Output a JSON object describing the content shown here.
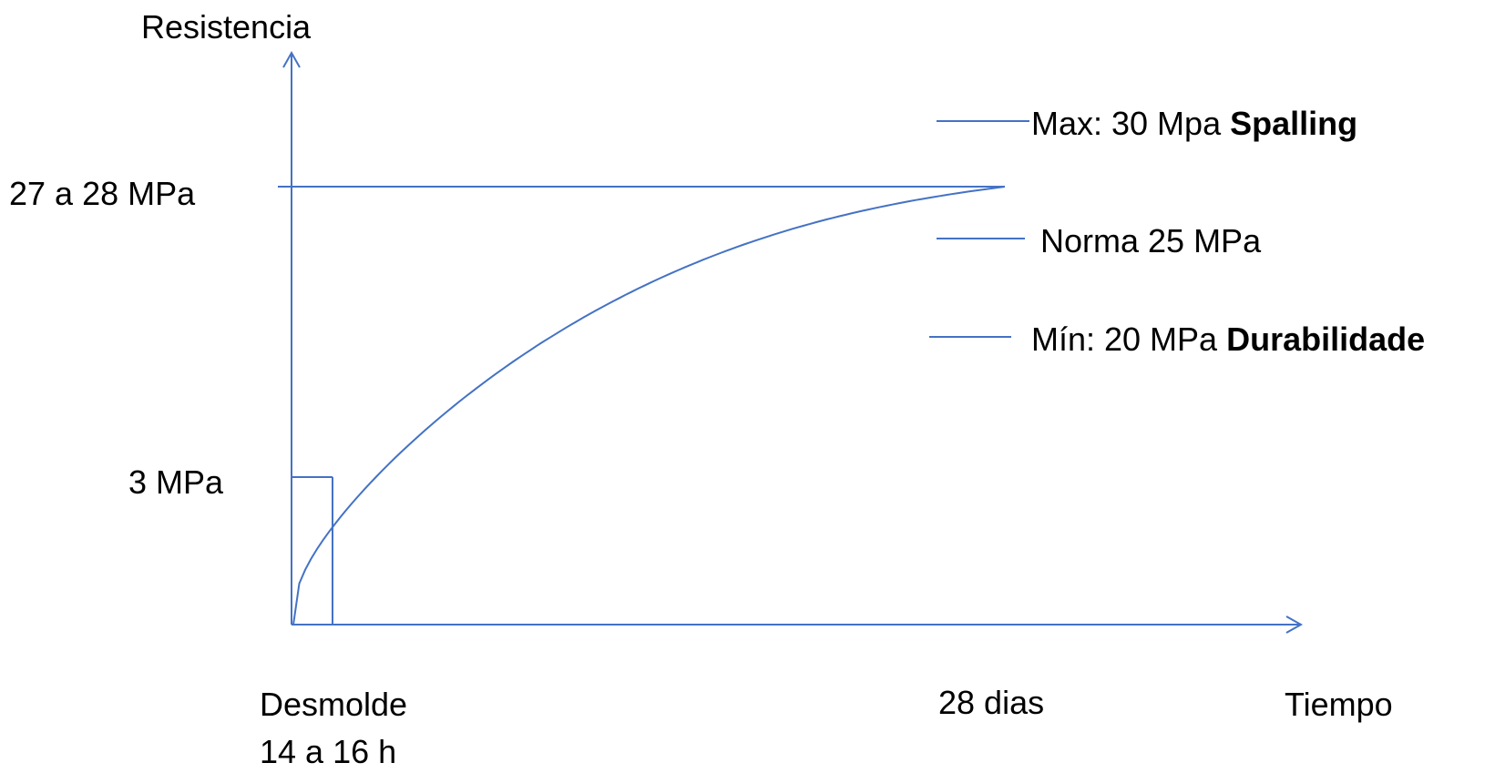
{
  "chart_data": {
    "type": "line",
    "ylabel": "Resistencia",
    "xlabel": "Tiempo",
    "accent_color": "#4472C4",
    "y_tick_labels": {
      "top": "27 a 28 MPa",
      "low": "3 MPa"
    },
    "x_tick_labels": {
      "early_line1": "Desmolde",
      "early_line2": "14 a 16 h",
      "late": "28 dias"
    },
    "reference_levels": [
      {
        "value": 30,
        "text": "Max: 30 Mpa ",
        "bold": "Spalling"
      },
      {
        "value": 25,
        "text": "Norma 25 MPa",
        "bold": ""
      },
      {
        "value": 20,
        "text": "Mín: 20 MPa ",
        "bold": "Durabilidade"
      }
    ],
    "series": [
      {
        "x_units": "days",
        "y_units": "MPa",
        "points": [
          {
            "x": 0,
            "y": 0
          },
          {
            "x": 0.625,
            "y": 3
          },
          {
            "x": 2,
            "y": 8.5
          },
          {
            "x": 4,
            "y": 13.5
          },
          {
            "x": 7,
            "y": 18.5
          },
          {
            "x": 14,
            "y": 24.5
          },
          {
            "x": 21,
            "y": 27
          },
          {
            "x": 28,
            "y": 27.5
          }
        ]
      }
    ],
    "curve_shape": "strength-gain (rapid early, plateau near 28 dias)"
  }
}
